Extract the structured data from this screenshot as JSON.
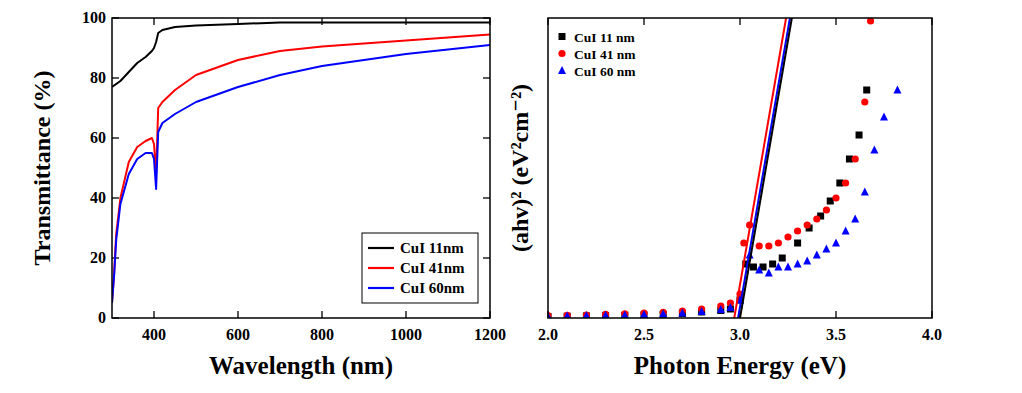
{
  "chart_data": [
    {
      "type": "line",
      "x_label": "Wavelength (nm)",
      "y_label": "Transmittance (%)",
      "xlim": [
        300,
        1200
      ],
      "ylim": [
        0,
        100
      ],
      "xticks": [
        400,
        600,
        800,
        1000,
        1200
      ],
      "yticks": [
        0,
        20,
        40,
        60,
        80,
        100
      ],
      "grid": false,
      "legend": "lower right",
      "series": [
        {
          "name": "CuI 11nm",
          "color": "#000000",
          "x": [
            300,
            320,
            340,
            360,
            380,
            395,
            400,
            405,
            410,
            420,
            450,
            500,
            600,
            700,
            800,
            1000,
            1200
          ],
          "values": [
            77,
            79,
            82,
            85,
            87,
            89,
            90,
            92,
            95,
            96,
            97,
            97.5,
            98,
            98.5,
            98.5,
            98.5,
            98.5
          ]
        },
        {
          "name": "CuI 41nm",
          "color": "#ff0000",
          "x": [
            300,
            305,
            310,
            320,
            340,
            360,
            380,
            395,
            400,
            405,
            410,
            420,
            450,
            500,
            600,
            700,
            800,
            900,
            1000,
            1100,
            1200
          ],
          "values": [
            5,
            15,
            28,
            40,
            52,
            57,
            59,
            60,
            58,
            48,
            70,
            72,
            76,
            81,
            86,
            89,
            90.5,
            91.5,
            92.5,
            93.5,
            94.5
          ]
        },
        {
          "name": "CuI 60nm",
          "color": "#0000ff",
          "x": [
            300,
            305,
            310,
            320,
            340,
            360,
            380,
            395,
            400,
            405,
            410,
            420,
            450,
            500,
            600,
            700,
            800,
            900,
            1000,
            1100,
            1200
          ],
          "values": [
            5,
            14,
            26,
            38,
            48,
            53,
            55,
            55,
            53,
            43,
            62,
            65,
            68,
            72,
            77,
            81,
            84,
            86,
            88,
            89.5,
            91
          ]
        }
      ]
    },
    {
      "type": "scatter",
      "x_label": "Photon Energy (eV)",
      "y_label": "(ahv)² (eV²cm⁻²)",
      "xlim": [
        2,
        4
      ],
      "ylim": [
        0,
        100
      ],
      "xticks": [
        {
          "value": 2,
          "label": "2.0"
        },
        2.5,
        {
          "value": 3,
          "label": "3.0"
        },
        3.5,
        {
          "value": 4,
          "label": "4.0"
        }
      ],
      "yticks": [],
      "tick_labels": "x",
      "grid": false,
      "legend": "upper left",
      "series": [
        {
          "name": "CuI 11 nm",
          "color": "#000000",
          "marker": "square",
          "x": [
            2.0,
            2.1,
            2.2,
            2.3,
            2.4,
            2.5,
            2.6,
            2.7,
            2.8,
            2.9,
            2.95,
            3.0,
            3.03,
            3.07,
            3.12,
            3.17,
            3.22,
            3.3,
            3.36,
            3.42,
            3.47,
            3.52,
            3.57,
            3.62,
            3.66
          ],
          "values": [
            0.5,
            0.6,
            0.7,
            0.8,
            0.9,
            1.0,
            1.2,
            1.5,
            2,
            2.5,
            3,
            6,
            18,
            17,
            17,
            18,
            20,
            25,
            30,
            34,
            39,
            45,
            53,
            61,
            76
          ]
        },
        {
          "name": "CuI 41 nm",
          "color": "#ff0000",
          "marker": "circle",
          "x": [
            2.0,
            2.1,
            2.2,
            2.3,
            2.4,
            2.5,
            2.6,
            2.7,
            2.8,
            2.9,
            2.95,
            3.0,
            3.02,
            3.05,
            3.1,
            3.15,
            3.2,
            3.25,
            3.3,
            3.35,
            3.4,
            3.45,
            3.5,
            3.55,
            3.6,
            3.65,
            3.68
          ],
          "values": [
            0.8,
            0.9,
            1.0,
            1.2,
            1.4,
            1.6,
            1.9,
            2.3,
            3,
            4,
            5,
            8,
            25,
            31,
            24,
            24,
            25,
            27,
            29,
            31,
            33,
            36,
            40,
            45,
            53,
            72,
            99
          ]
        },
        {
          "name": "CuI 60 nm",
          "color": "#0000ff",
          "marker": "triangle",
          "x": [
            2.0,
            2.1,
            2.2,
            2.3,
            2.4,
            2.5,
            2.6,
            2.7,
            2.8,
            2.9,
            2.95,
            3.0,
            3.05,
            3.1,
            3.15,
            3.2,
            3.25,
            3.3,
            3.35,
            3.4,
            3.45,
            3.5,
            3.55,
            3.6,
            3.65,
            3.7,
            3.75,
            3.82
          ],
          "values": [
            0.6,
            0.7,
            0.8,
            0.9,
            1.0,
            1.2,
            1.4,
            1.7,
            2.2,
            2.8,
            3.5,
            6,
            21,
            16,
            15,
            17,
            17,
            18,
            19,
            21,
            23,
            25,
            29,
            33,
            42,
            56,
            67,
            76
          ]
        },
        {
          "type": "line",
          "color": "#ff0000",
          "x": [
            2.97,
            3.24
          ],
          "values": [
            0,
            100
          ]
        },
        {
          "type": "line",
          "color": "#0000ff",
          "x": [
            2.99,
            3.26
          ],
          "values": [
            0,
            100
          ]
        },
        {
          "type": "line",
          "color": "#000000",
          "x": [
            3.0,
            3.27
          ],
          "values": [
            0,
            100
          ]
        }
      ]
    }
  ]
}
